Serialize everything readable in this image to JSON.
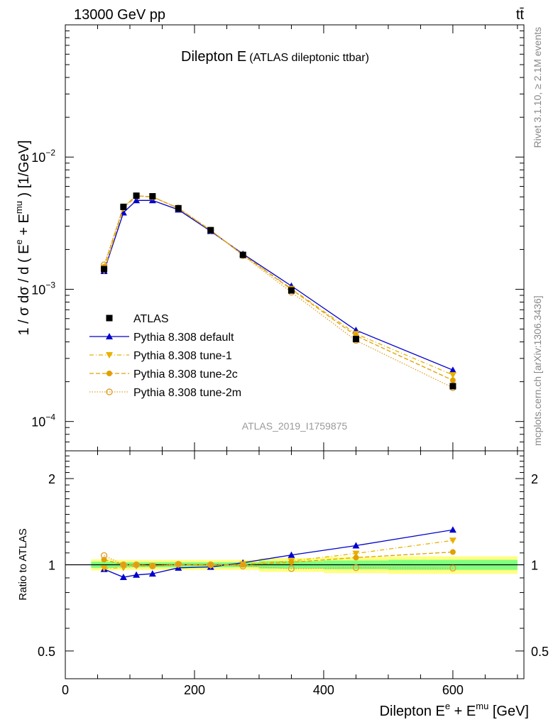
{
  "header": {
    "left": "13000 GeV pp",
    "right": "tt̄"
  },
  "side_text": {
    "rivet": "Rivet 3.1.10, ≥ 2.1M events",
    "mcplots": "mcplots.cern.ch [arXiv:1306.3436]"
  },
  "main_plot": {
    "title": "Dilepton E",
    "subtitle": "(ATLAS dileptonic ttbar)",
    "analysis_label": "ATLAS_2019_I1759875",
    "ylabel": "1 / σ  dσ / d ( E^e + E^mu ) [1/GeV]",
    "ylabel_parts": {
      "pre": "1 / σ  dσ / d ( E",
      "sup1": "e",
      "mid": " + E",
      "sup2": "mu",
      "post": " ) [1/GeV]"
    },
    "ytick_labels": [
      {
        "base": "10",
        "exp": "−2",
        "value": 0.01
      },
      {
        "base": "10",
        "exp": "−3",
        "value": 0.001
      },
      {
        "base": "10",
        "exp": "−4",
        "value": 0.0001
      }
    ]
  },
  "ratio_plot": {
    "ylabel": "Ratio to ATLAS",
    "ytick_labels": [
      "2",
      "1",
      "0.5"
    ]
  },
  "xaxis": {
    "label_pre": "Dilepton E",
    "label_sup1": "e",
    "label_mid": " + E",
    "label_sup2": "mu",
    "label_post": " [GeV]",
    "tick_labels": [
      "0",
      "200",
      "400",
      "600"
    ]
  },
  "chart_data": {
    "type": "line",
    "title": "Dilepton E (ATLAS dileptonic ttbar)",
    "xlim": [
      0,
      710
    ],
    "ylim": [
      6e-05,
      0.1
    ],
    "ylog": true,
    "ratio_ylim": [
      0.4,
      2.5
    ],
    "ratio_ylog": true,
    "legend_position": "center-left",
    "x": [
      60,
      90,
      110,
      135,
      175,
      225,
      275,
      350,
      450,
      600
    ],
    "band": {
      "bin_edges": [
        40,
        75,
        100,
        120,
        150,
        200,
        250,
        300,
        400,
        500,
        700
      ],
      "inner": [
        0.025,
        0.02,
        0.02,
        0.02,
        0.02,
        0.02,
        0.02,
        0.03,
        0.035,
        0.04
      ],
      "outer": [
        0.045,
        0.04,
        0.04,
        0.04,
        0.04,
        0.04,
        0.04,
        0.055,
        0.065,
        0.07
      ]
    },
    "series": [
      {
        "name": "ATLAS",
        "style": "data",
        "color": "#000000",
        "values": [
          0.00142,
          0.0042,
          0.0051,
          0.00505,
          0.0041,
          0.0028,
          0.00182,
          0.00098,
          0.00042,
          0.000185
        ]
      },
      {
        "name": "Pythia 8.308 default",
        "style": "solid",
        "marker": "triangle-up",
        "color": "#0000cc",
        "values": [
          0.00137,
          0.0038,
          0.0047,
          0.0047,
          0.004,
          0.00275,
          0.00185,
          0.00106,
          0.00049,
          0.000245
        ]
      },
      {
        "name": "Pythia 8.308 tune-1",
        "style": "dashdot",
        "marker": "triangle-down",
        "color": "#e8b000",
        "values": [
          0.00138,
          0.0041,
          0.00505,
          0.005,
          0.0041,
          0.00278,
          0.00183,
          0.00101,
          0.00046,
          0.000225
        ]
      },
      {
        "name": "Pythia 8.308 tune-2c",
        "style": "dashed",
        "marker": "circle",
        "color": "#e0a000",
        "values": [
          0.00148,
          0.0042,
          0.0051,
          0.005,
          0.0041,
          0.0028,
          0.00182,
          0.001,
          0.000445,
          0.000205
        ]
      },
      {
        "name": "Pythia 8.308 tune-2m",
        "style": "dotted",
        "marker": "open-circle",
        "color": "#e0a030",
        "values": [
          0.00153,
          0.0042,
          0.0051,
          0.005,
          0.00412,
          0.0028,
          0.0018,
          0.00095,
          0.00041,
          0.00018
        ]
      }
    ]
  }
}
